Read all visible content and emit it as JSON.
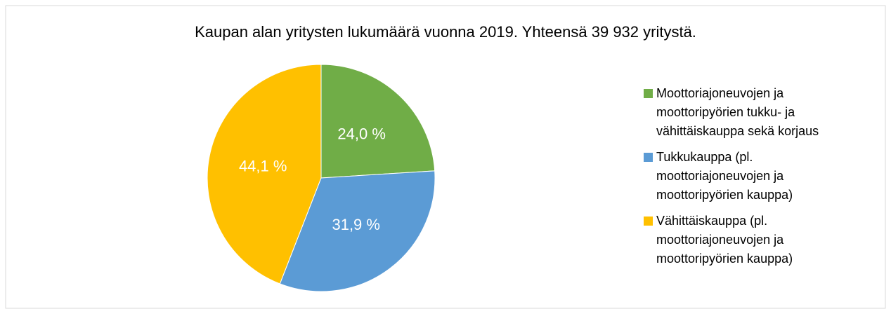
{
  "chart_data": {
    "type": "pie",
    "title": "Kaupan alan yritysten lukumäärä vuonna 2019. Yhteensä 39 932 yritystä.",
    "categories": [
      "Moottoriajoneuvojen ja moottoripyörien tukku- ja vähittäiskauppa sekä korjaus",
      "Tukkukauppa (pl. moottoriajoneuvojen ja moottoripyörien kauppa)",
      "Vähittäiskauppa (pl. moottoriajoneuvojen ja moottoripyörien kauppa)"
    ],
    "values": [
      24.0,
      31.9,
      44.1
    ],
    "value_labels": [
      "24,0 %",
      "31,9 %",
      "44,1 %"
    ],
    "colors": [
      "#70ad47",
      "#5b9bd5",
      "#ffc000"
    ],
    "legend": "right"
  }
}
